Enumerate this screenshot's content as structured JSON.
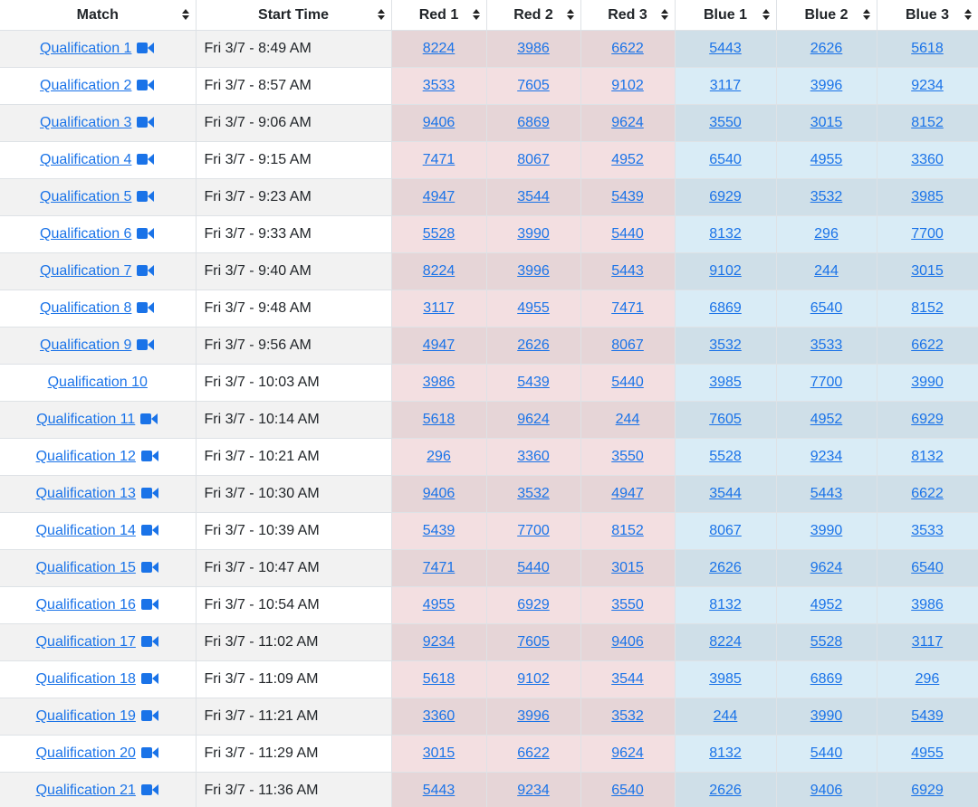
{
  "colors": {
    "link": "#1a73e8",
    "red_alliance_bg": "#f3dfe1",
    "red_alliance_bg_alt": "#e6d5d7",
    "blue_alliance_bg": "#d9ecf6",
    "blue_alliance_bg_alt": "#cfdfe8",
    "row_alt_bg": "#f2f2f2"
  },
  "headers": {
    "match": "Match",
    "start_time": "Start Time",
    "red1": "Red 1",
    "red2": "Red 2",
    "red3": "Red 3",
    "blue1": "Blue 1",
    "blue2": "Blue 2",
    "blue3": "Blue 3"
  },
  "rows": [
    {
      "match": "Qualification 1",
      "video": true,
      "time": "Fri 3/7 - 8:49 AM",
      "red": [
        "8224",
        "3986",
        "6622"
      ],
      "blue": [
        "5443",
        "2626",
        "5618"
      ]
    },
    {
      "match": "Qualification 2",
      "video": true,
      "time": "Fri 3/7 - 8:57 AM",
      "red": [
        "3533",
        "7605",
        "9102"
      ],
      "blue": [
        "3117",
        "3996",
        "9234"
      ]
    },
    {
      "match": "Qualification 3",
      "video": true,
      "time": "Fri 3/7 - 9:06 AM",
      "red": [
        "9406",
        "6869",
        "9624"
      ],
      "blue": [
        "3550",
        "3015",
        "8152"
      ]
    },
    {
      "match": "Qualification 4",
      "video": true,
      "time": "Fri 3/7 - 9:15 AM",
      "red": [
        "7471",
        "8067",
        "4952"
      ],
      "blue": [
        "6540",
        "4955",
        "3360"
      ]
    },
    {
      "match": "Qualification 5",
      "video": true,
      "time": "Fri 3/7 - 9:23 AM",
      "red": [
        "4947",
        "3544",
        "5439"
      ],
      "blue": [
        "6929",
        "3532",
        "3985"
      ]
    },
    {
      "match": "Qualification 6",
      "video": true,
      "time": "Fri 3/7 - 9:33 AM",
      "red": [
        "5528",
        "3990",
        "5440"
      ],
      "blue": [
        "8132",
        "296",
        "7700"
      ]
    },
    {
      "match": "Qualification 7",
      "video": true,
      "time": "Fri 3/7 - 9:40 AM",
      "red": [
        "8224",
        "3996",
        "5443"
      ],
      "blue": [
        "9102",
        "244",
        "3015"
      ]
    },
    {
      "match": "Qualification 8",
      "video": true,
      "time": "Fri 3/7 - 9:48 AM",
      "red": [
        "3117",
        "4955",
        "7471"
      ],
      "blue": [
        "6869",
        "6540",
        "8152"
      ]
    },
    {
      "match": "Qualification 9",
      "video": true,
      "time": "Fri 3/7 - 9:56 AM",
      "red": [
        "4947",
        "2626",
        "8067"
      ],
      "blue": [
        "3532",
        "3533",
        "6622"
      ]
    },
    {
      "match": "Qualification 10",
      "video": false,
      "time": "Fri 3/7 - 10:03 AM",
      "red": [
        "3986",
        "5439",
        "5440"
      ],
      "blue": [
        "3985",
        "7700",
        "3990"
      ]
    },
    {
      "match": "Qualification 11",
      "video": true,
      "time": "Fri 3/7 - 10:14 AM",
      "red": [
        "5618",
        "9624",
        "244"
      ],
      "blue": [
        "7605",
        "4952",
        "6929"
      ]
    },
    {
      "match": "Qualification 12",
      "video": true,
      "time": "Fri 3/7 - 10:21 AM",
      "red": [
        "296",
        "3360",
        "3550"
      ],
      "blue": [
        "5528",
        "9234",
        "8132"
      ]
    },
    {
      "match": "Qualification 13",
      "video": true,
      "time": "Fri 3/7 - 10:30 AM",
      "red": [
        "9406",
        "3532",
        "4947"
      ],
      "blue": [
        "3544",
        "5443",
        "6622"
      ]
    },
    {
      "match": "Qualification 14",
      "video": true,
      "time": "Fri 3/7 - 10:39 AM",
      "red": [
        "5439",
        "7700",
        "8152"
      ],
      "blue": [
        "8067",
        "3990",
        "3533"
      ]
    },
    {
      "match": "Qualification 15",
      "video": true,
      "time": "Fri 3/7 - 10:47 AM",
      "red": [
        "7471",
        "5440",
        "3015"
      ],
      "blue": [
        "2626",
        "9624",
        "6540"
      ]
    },
    {
      "match": "Qualification 16",
      "video": true,
      "time": "Fri 3/7 - 10:54 AM",
      "red": [
        "4955",
        "6929",
        "3550"
      ],
      "blue": [
        "8132",
        "4952",
        "3986"
      ]
    },
    {
      "match": "Qualification 17",
      "video": true,
      "time": "Fri 3/7 - 11:02 AM",
      "red": [
        "9234",
        "7605",
        "9406"
      ],
      "blue": [
        "8224",
        "5528",
        "3117"
      ]
    },
    {
      "match": "Qualification 18",
      "video": true,
      "time": "Fri 3/7 - 11:09 AM",
      "red": [
        "5618",
        "9102",
        "3544"
      ],
      "blue": [
        "3985",
        "6869",
        "296"
      ]
    },
    {
      "match": "Qualification 19",
      "video": true,
      "time": "Fri 3/7 - 11:21 AM",
      "red": [
        "3360",
        "3996",
        "3532"
      ],
      "blue": [
        "244",
        "3990",
        "5439"
      ]
    },
    {
      "match": "Qualification 20",
      "video": true,
      "time": "Fri 3/7 - 11:29 AM",
      "red": [
        "3015",
        "6622",
        "9624"
      ],
      "blue": [
        "8132",
        "5440",
        "4955"
      ]
    },
    {
      "match": "Qualification 21",
      "video": true,
      "time": "Fri 3/7 - 11:36 AM",
      "red": [
        "5443",
        "9234",
        "6540"
      ],
      "blue": [
        "2626",
        "9406",
        "6929"
      ]
    }
  ]
}
